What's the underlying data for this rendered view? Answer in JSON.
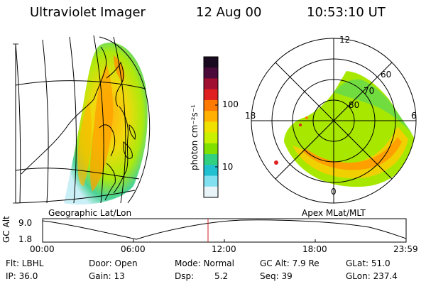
{
  "header": {
    "instrument": "Ultraviolet Imager",
    "date": "12 Aug 00",
    "time": "10:53:10 UT"
  },
  "colorbar": {
    "unit": "photon cm⁻²s⁻¹",
    "ticks": [
      "100",
      "10"
    ],
    "colors": [
      "#1a0a20",
      "#4a0a3a",
      "#a01030",
      "#e02020",
      "#ff7a00",
      "#ffb000",
      "#f0e000",
      "#c8f000",
      "#80e000",
      "#30d080",
      "#20c0d0",
      "#80e0f0",
      "#e8f4f8"
    ]
  },
  "geo_panel": {
    "caption": "Geographic Lat/Lon"
  },
  "polar_panel": {
    "caption": "Apex MLat/MLT",
    "mlt_labels": [
      "12",
      "18",
      "6",
      "0"
    ],
    "lat_labels": [
      "60",
      "70",
      "80"
    ]
  },
  "timeline": {
    "axis_label": "GC Alt",
    "y_ticks": [
      "9.0",
      "1.8"
    ],
    "x_ticks": [
      "00:00",
      "06:00",
      "12:00",
      "18:00",
      "23:59"
    ],
    "current_time_fraction": 0.455,
    "marker_color": "#d02020"
  },
  "info": {
    "filter": "Flt: LBHL",
    "ip": "IP: 36.0",
    "door": "Door: Open",
    "gain": "Gain: 13",
    "mode": "Mode: Normal",
    "dsp_label": "Dsp:",
    "dsp_value": "5.2",
    "gc_alt": "GC Alt: 7.9 Re",
    "seq": "Seq: 39",
    "glat": "GLat: 51.0",
    "glon": "GLon: 237.4"
  }
}
